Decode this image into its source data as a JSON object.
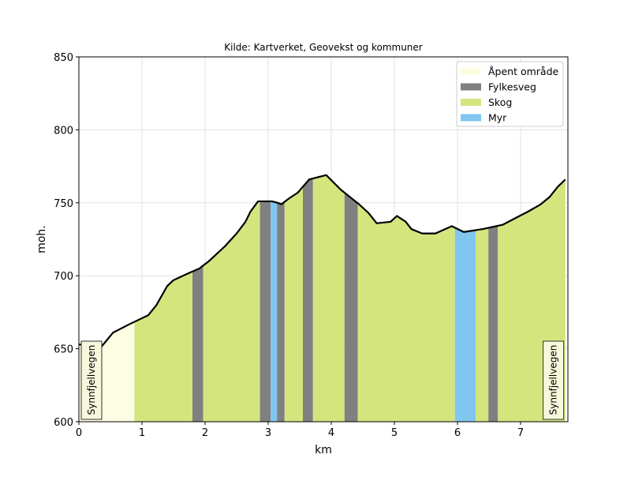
{
  "chart_data": {
    "type": "area",
    "title": "Kilde: Kartverket, Geovekst og kommuner",
    "xlabel": "km",
    "ylabel": "moh.",
    "xlim": [
      0,
      7.75
    ],
    "ylim": [
      600,
      850
    ],
    "xticks": [
      "0",
      "1",
      "2",
      "3",
      "4",
      "5",
      "6",
      "7"
    ],
    "yticks": [
      "600",
      "650",
      "700",
      "750",
      "800",
      "850"
    ],
    "grid": true,
    "legend_position": "top-right",
    "legend": [
      {
        "name": "Åpent område",
        "color": "#fdfde3"
      },
      {
        "name": "Fylkesveg",
        "color": "#808080"
      },
      {
        "name": "Skog",
        "color": "#d4e57e"
      },
      {
        "name": "Myr",
        "color": "#80c6ef"
      }
    ],
    "profile": {
      "x": [
        0,
        0.35,
        0.54,
        0.81,
        1.1,
        1.23,
        1.4,
        1.5,
        1.75,
        1.91,
        2.06,
        2.31,
        2.5,
        2.64,
        2.72,
        2.84,
        3.06,
        3.15,
        3.21,
        3.33,
        3.47,
        3.65,
        3.92,
        4.15,
        4.44,
        4.59,
        4.72,
        4.94,
        5.04,
        5.18,
        5.27,
        5.44,
        5.65,
        5.91,
        6.1,
        6.4,
        6.72,
        6.94,
        7.12,
        7.32,
        7.46,
        7.59,
        7.71
      ],
      "y": [
        653,
        651,
        661,
        667,
        673,
        680,
        693,
        697,
        702,
        705,
        710,
        720,
        729,
        737,
        744,
        751,
        751,
        750,
        749,
        753,
        757,
        766,
        769,
        759,
        749,
        743,
        736,
        737,
        741,
        737,
        732,
        729,
        729,
        734,
        730,
        732,
        735,
        740,
        744,
        749,
        754,
        761,
        766
      ]
    },
    "segments": [
      {
        "type": "Åpent område",
        "from": 0,
        "to": 0.88
      },
      {
        "type": "Skog",
        "from": 0.88,
        "to": 1.8
      },
      {
        "type": "Fylkesveg",
        "from": 1.8,
        "to": 1.97
      },
      {
        "type": "Skog",
        "from": 1.97,
        "to": 2.87
      },
      {
        "type": "Fylkesveg",
        "from": 2.87,
        "to": 3.04
      },
      {
        "type": "Myr",
        "from": 3.04,
        "to": 3.14
      },
      {
        "type": "Fylkesveg",
        "from": 3.14,
        "to": 3.26
      },
      {
        "type": "Skog",
        "from": 3.26,
        "to": 3.55
      },
      {
        "type": "Fylkesveg",
        "from": 3.55,
        "to": 3.71
      },
      {
        "type": "Skog",
        "from": 3.71,
        "to": 4.21
      },
      {
        "type": "Fylkesveg",
        "from": 4.21,
        "to": 4.42
      },
      {
        "type": "Skog",
        "from": 4.42,
        "to": 5.96
      },
      {
        "type": "Myr",
        "from": 5.96,
        "to": 6.29
      },
      {
        "type": "Skog",
        "from": 6.29,
        "to": 6.49
      },
      {
        "type": "Fylkesveg",
        "from": 6.49,
        "to": 6.64
      },
      {
        "type": "Skog",
        "from": 6.64,
        "to": 7.75
      }
    ],
    "annotations": [
      {
        "text": "Synnfjellvegen",
        "x": 0.2
      },
      {
        "text": "Synnfjellvegen",
        "x": 7.52
      }
    ]
  }
}
